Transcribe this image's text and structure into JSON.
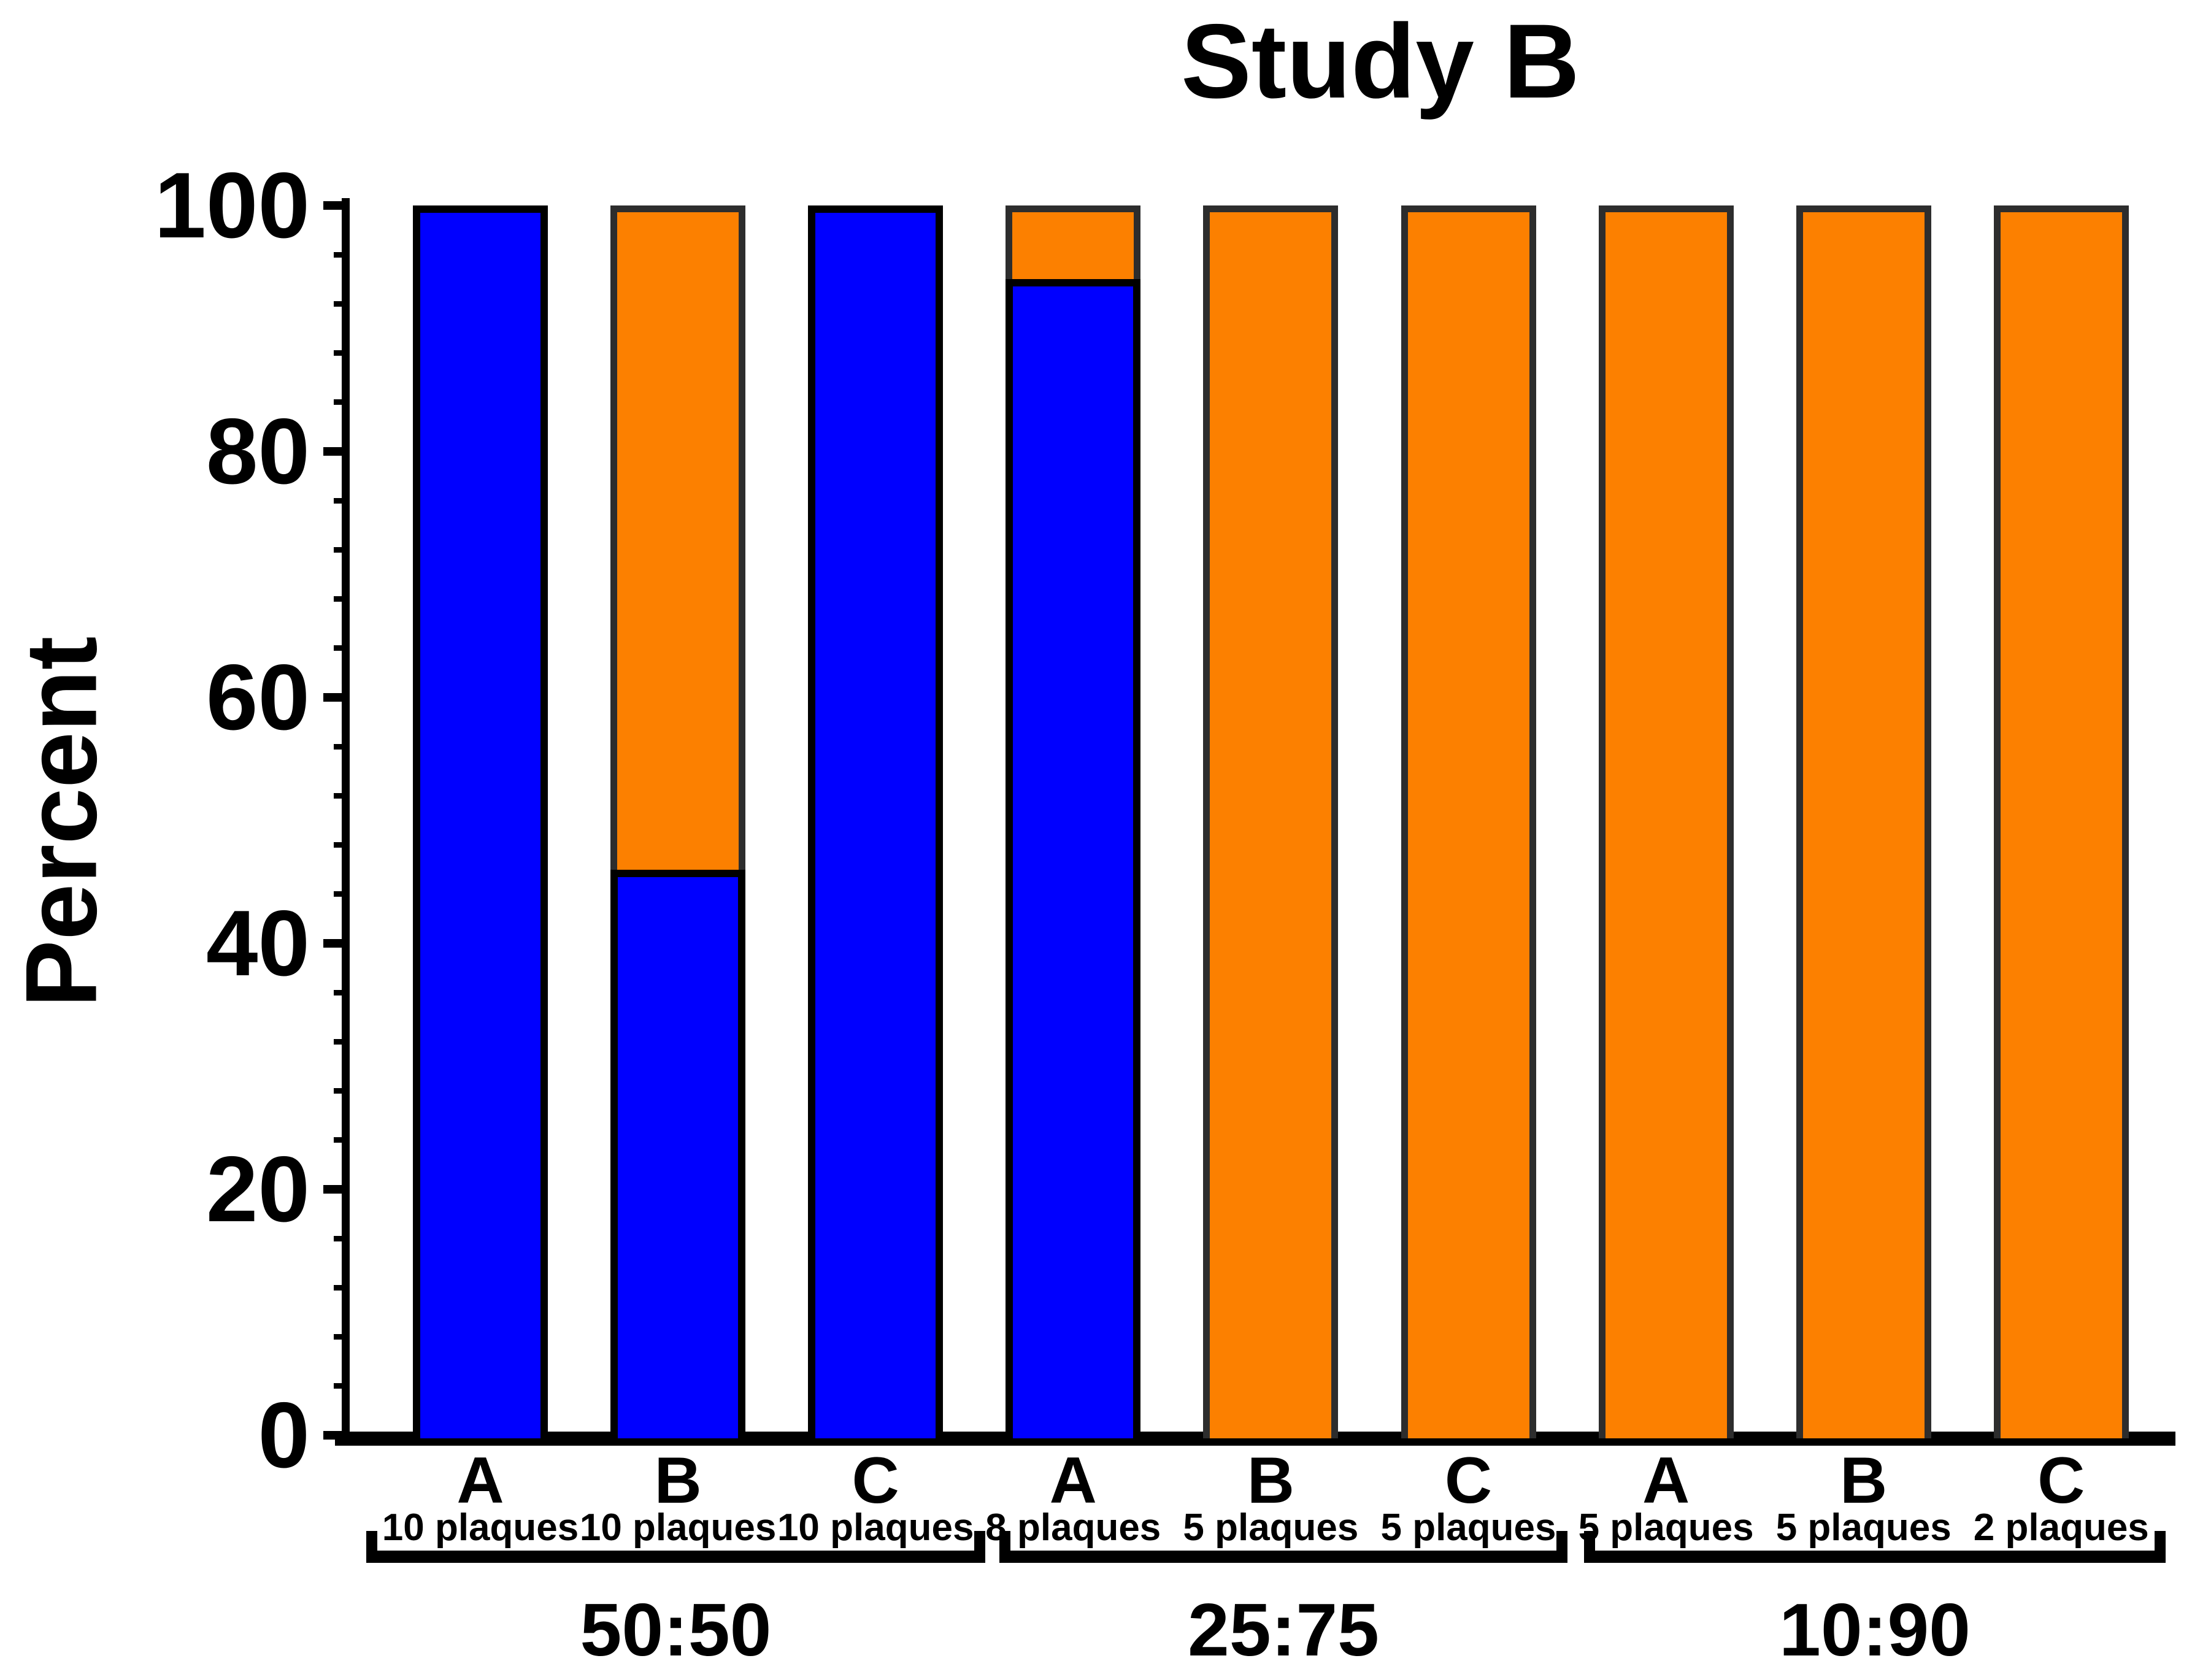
{
  "title": "Study B",
  "y_axis": {
    "label": "Percent",
    "ticks": [
      100,
      80,
      60,
      40,
      20,
      0
    ],
    "minor_tick_step": 4,
    "min": 0,
    "max": 100
  },
  "colors": {
    "blue_fill": "#0000FF",
    "blue_border": "#000000",
    "orange_fill": "#FC8000",
    "orange_border": "#2D2D2D",
    "axis": "#000000",
    "background": "#FFFFFF"
  },
  "chart_data": {
    "type": "bar",
    "stacked": true,
    "title": "Study B",
    "xlabel": "",
    "ylabel": "Percent",
    "ylim": [
      0,
      100
    ],
    "grid": false,
    "legend": "none",
    "series_colors": {
      "blue": "#0000FF",
      "orange": "#FC8000"
    },
    "groups": [
      {
        "ratio": "50:50",
        "bars": [
          {
            "label": "A",
            "plaques": "10 plaques",
            "blue": 100,
            "orange": 0
          },
          {
            "label": "B",
            "plaques": "10 plaques",
            "blue": 46,
            "orange": 54
          },
          {
            "label": "C",
            "plaques": "10 plaques",
            "blue": 100,
            "orange": 0
          }
        ]
      },
      {
        "ratio": "25:75",
        "bars": [
          {
            "label": "A",
            "plaques": "8 plaques",
            "blue": 94,
            "orange": 6
          },
          {
            "label": "B",
            "plaques": "5 plaques",
            "blue": 0,
            "orange": 100
          },
          {
            "label": "C",
            "plaques": "5 plaques",
            "blue": 0,
            "orange": 100
          }
        ]
      },
      {
        "ratio": "10:90",
        "bars": [
          {
            "label": "A",
            "plaques": "5 plaques",
            "blue": 0,
            "orange": 100
          },
          {
            "label": "B",
            "plaques": "5 plaques",
            "blue": 0,
            "orange": 100
          },
          {
            "label": "C",
            "plaques": "2 plaques",
            "blue": 0,
            "orange": 100
          }
        ]
      }
    ]
  }
}
